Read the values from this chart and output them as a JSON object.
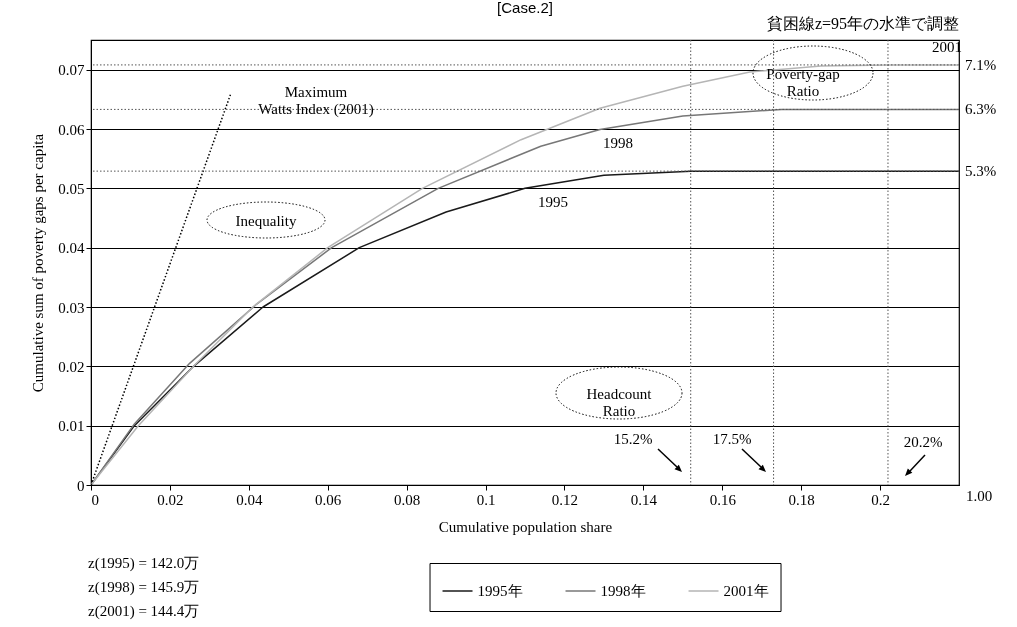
{
  "chart_data": {
    "type": "line",
    "title": "[Case.2]",
    "subtitle": "貧困線z=95年の水準で調整",
    "xlabel": "Cumulative population share",
    "ylabel": "Cumulative sum of poverty gaps per capita",
    "xlim": [
      0,
      0.22
    ],
    "xticks": [
      0,
      0.02,
      0.04,
      0.06,
      0.08,
      0.1,
      0.12,
      0.14,
      0.16,
      0.18,
      0.2
    ],
    "ylim": [
      0,
      0.075
    ],
    "yticks": [
      0,
      0.01,
      0.02,
      0.03,
      0.04,
      0.05,
      0.06,
      0.07
    ],
    "grid": "y",
    "legend": "bottom",
    "line_style": "solid",
    "marker": "none",
    "series": [
      {
        "name": "1995年",
        "color": "#1a1a1a",
        "x": [
          0,
          0.011,
          0.026,
          0.0436,
          0.068,
          0.09,
          0.11,
          0.13,
          0.152,
          0.22
        ],
        "values": [
          0,
          0.01,
          0.02,
          0.03,
          0.04,
          0.046,
          0.05,
          0.0522,
          0.0529,
          0.0529
        ]
      },
      {
        "name": "1998年",
        "color": "#777777",
        "x": [
          0,
          0.011,
          0.025,
          0.042,
          0.061,
          0.088,
          0.114,
          0.129,
          0.15,
          0.175,
          0.22
        ],
        "values": [
          0,
          0.0103,
          0.0205,
          0.0305,
          0.04,
          0.05,
          0.0571,
          0.0599,
          0.0622,
          0.0633,
          0.0633
        ]
      },
      {
        "name": "2001年",
        "color": "#b5b5b5",
        "x": [
          0,
          0.012,
          0.026,
          0.041,
          0.06,
          0.084,
          0.109,
          0.129,
          0.15,
          0.167,
          0.185,
          0.202,
          0.22
        ],
        "values": [
          0,
          0.01,
          0.02,
          0.03,
          0.04,
          0.05,
          0.0582,
          0.0635,
          0.0672,
          0.0696,
          0.0706,
          0.0708,
          0.0708
        ]
      },
      {
        "color": "#000000",
        "line_style": "dotted",
        "x": [
          0,
          0.0354
        ],
        "values": [
          0,
          0.0659
        ]
      }
    ],
    "ref_lines": [
      {
        "axis": "y",
        "value": 0.0529,
        "label": "5.3%",
        "color": "#555555",
        "line_style": "dotted"
      },
      {
        "axis": "y",
        "value": 0.0633,
        "label": "6.3%",
        "color": "#555555",
        "line_style": "dotted"
      },
      {
        "axis": "y",
        "value": 0.0708,
        "label": "7.1%",
        "color": "#555555",
        "line_style": "dotted"
      },
      {
        "axis": "x",
        "value": 0.152,
        "color": "#555555",
        "line_style": "dotted"
      },
      {
        "axis": "x",
        "value": 0.173,
        "color": "#555555",
        "line_style": "dotted"
      },
      {
        "axis": "x",
        "value": 0.202,
        "color": "#555555",
        "line_style": "dotted"
      }
    ],
    "annotations": [
      "Maximum\nWatts Index (2001)",
      "Inequality",
      "Headcount\nRatio",
      "Poverty-gap\nRatio",
      "1995",
      "1998",
      "2001",
      "15.2%",
      "17.5%",
      "20.2%",
      "1.00",
      "z(1995) = 142.0万",
      "z(1998) = 145.9万",
      "z(2001) = 144.4万"
    ]
  }
}
